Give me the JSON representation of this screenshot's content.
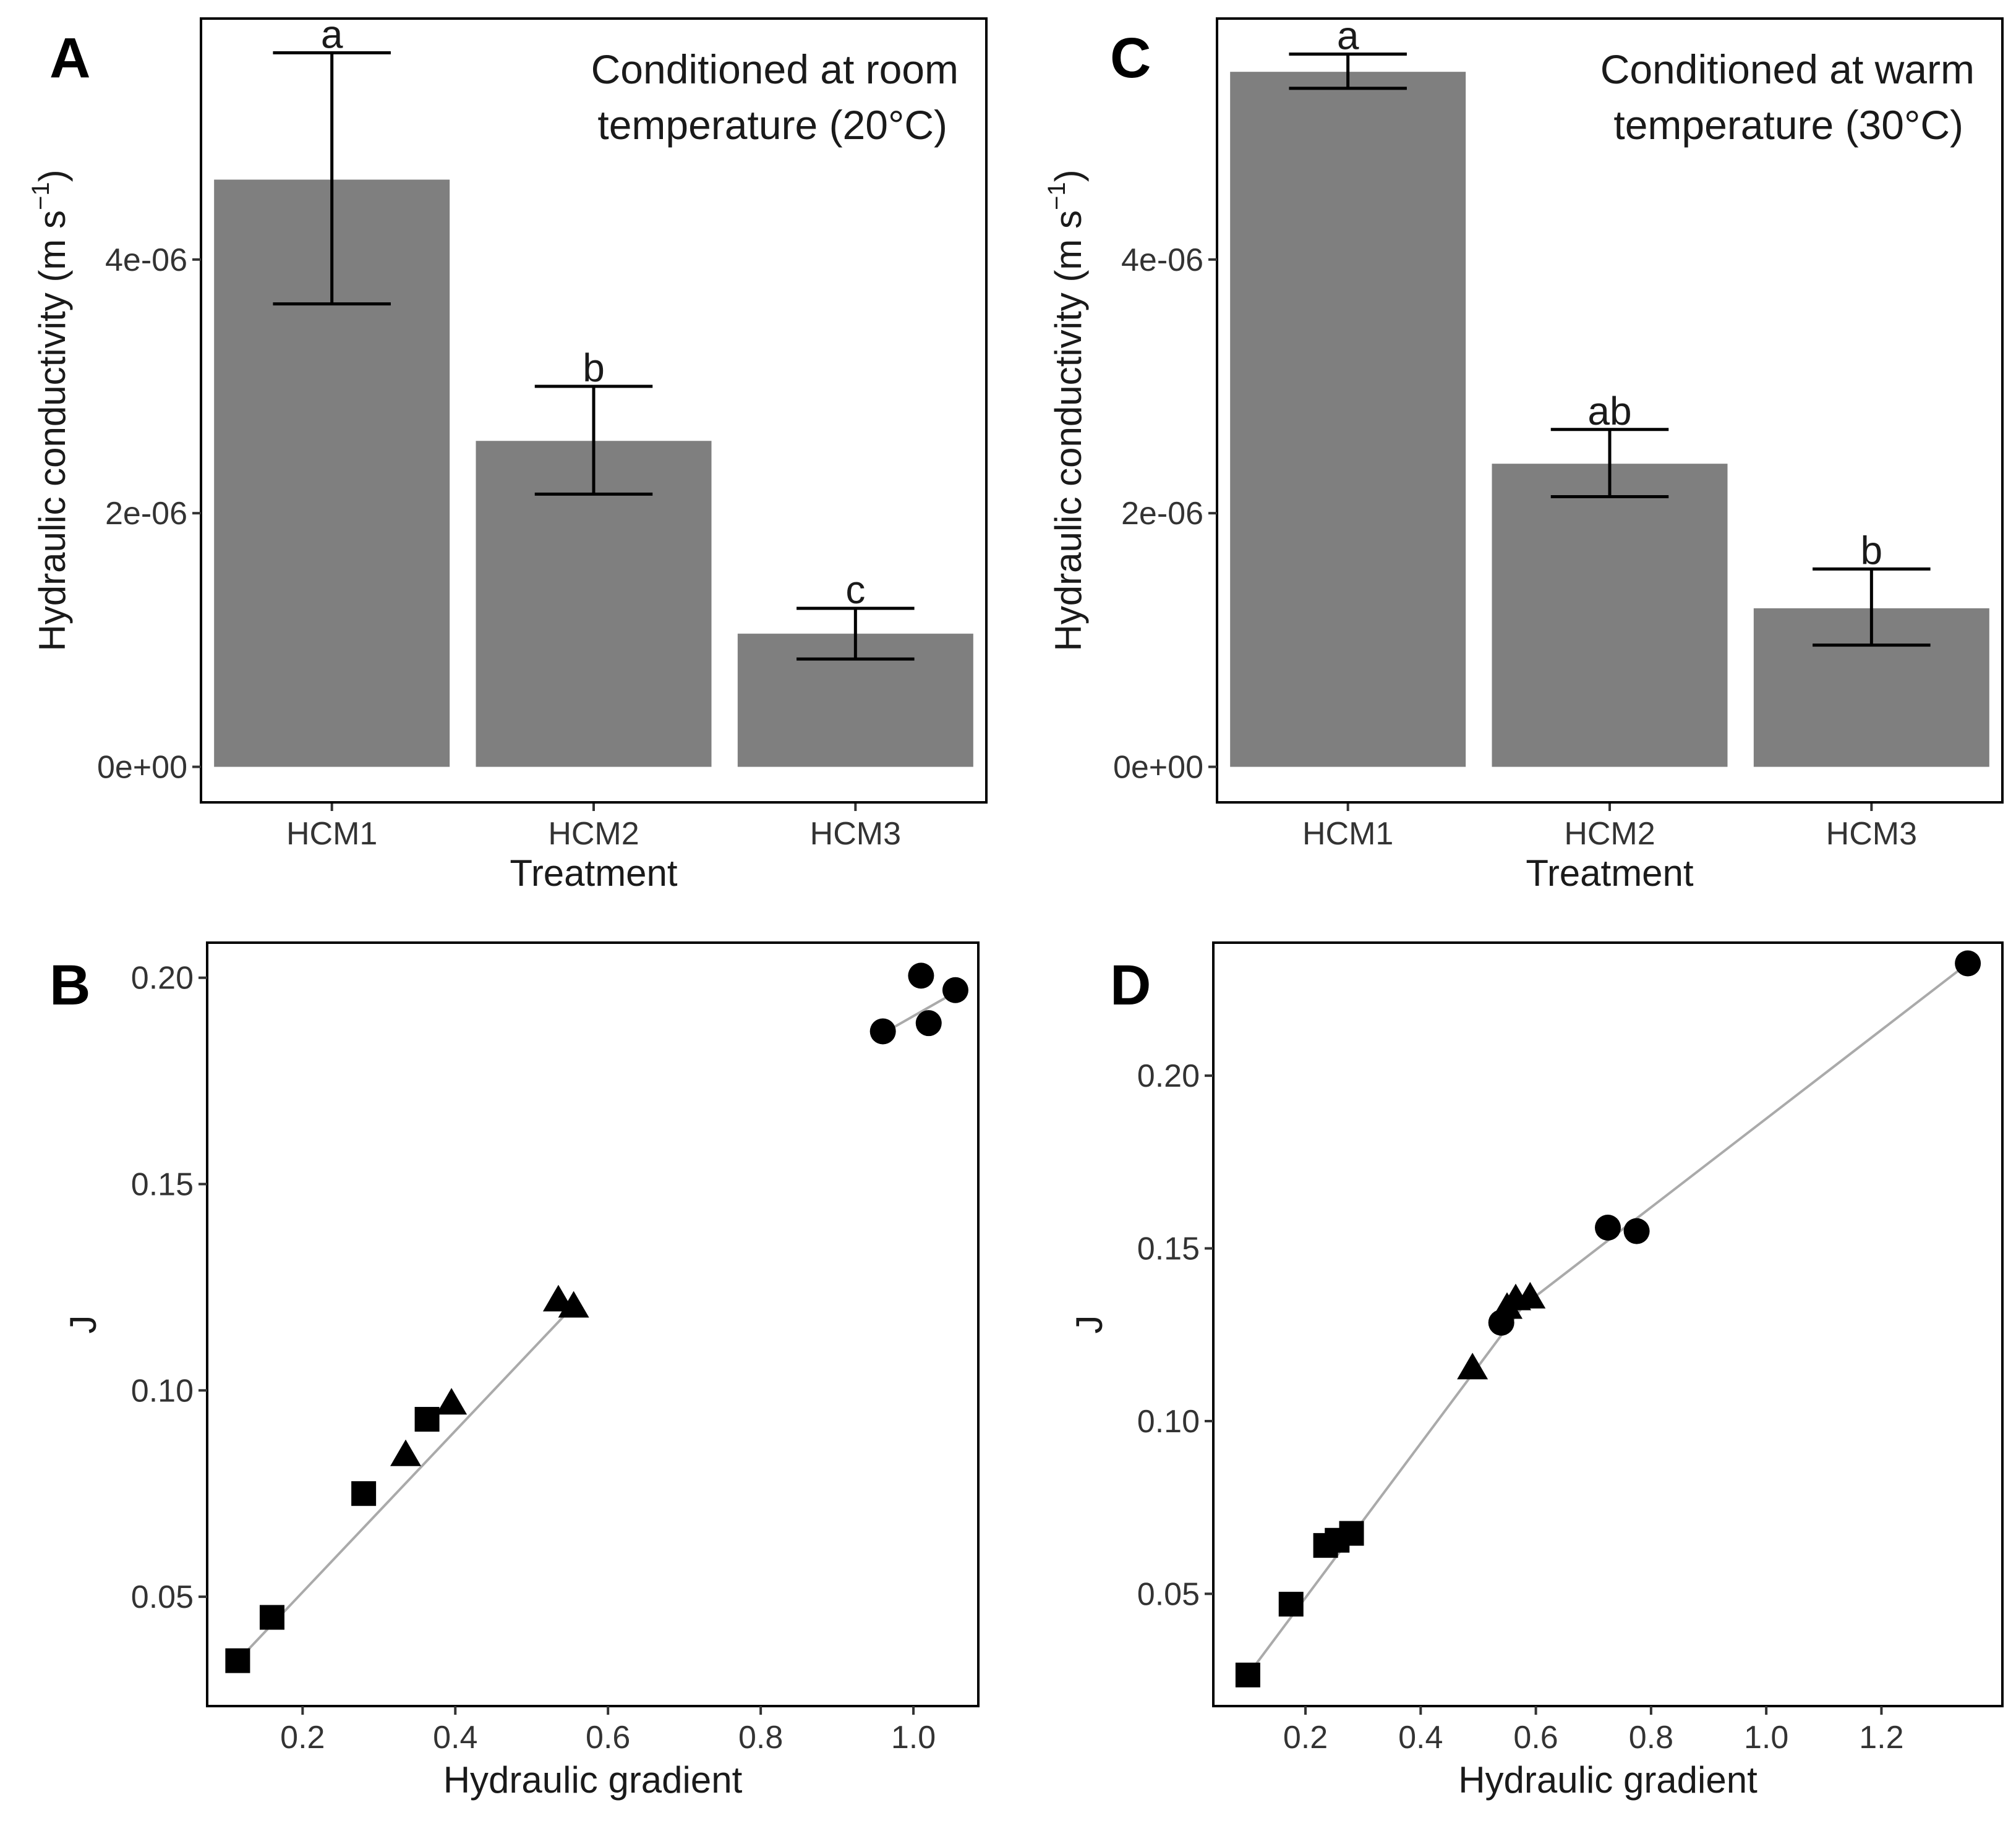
{
  "chart_data": [
    {
      "panel": "A",
      "type": "bar",
      "annotation": [
        "Conditioned at room",
        "temperature (20°C)"
      ],
      "xlabel": "Treatment",
      "ylabel": "Hydraulic conductivity (m s",
      "ylabel_sup": "−1",
      "ylabel_close": ")",
      "categories": [
        "HCM1",
        "HCM2",
        "HCM3"
      ],
      "values": [
        4.63e-06,
        2.57e-06,
        1.05e-06
      ],
      "error_low": [
        3.65e-06,
        2.15e-06,
        8.5e-07
      ],
      "error_high": [
        5.63e-06,
        3e-06,
        1.25e-06
      ],
      "letters": [
        "a",
        "b",
        "c"
      ],
      "ylim": [
        -2.8e-07,
        5.9e-06
      ],
      "yticks": [
        0,
        2e-06,
        4e-06
      ],
      "ytick_labels": [
        "0e+00",
        "2e-06",
        "4e-06"
      ],
      "bar_color": "#7f7f7f"
    },
    {
      "panel": "C",
      "type": "bar",
      "annotation": [
        "Conditioned at warm",
        "temperature (30°C)"
      ],
      "xlabel": "Treatment",
      "ylabel": "Hydraulic conductivity (m s",
      "ylabel_sup": "−1",
      "ylabel_close": ")",
      "categories": [
        "HCM1",
        "HCM2",
        "HCM3"
      ],
      "values": [
        5.48e-06,
        2.39e-06,
        1.25e-06
      ],
      "error_low": [
        5.35e-06,
        2.13e-06,
        9.6e-07
      ],
      "error_high": [
        5.62e-06,
        2.66e-06,
        1.56e-06
      ],
      "letters": [
        "a",
        "ab",
        "b"
      ],
      "ylim": [
        -2.8e-07,
        5.9e-06
      ],
      "yticks": [
        0,
        2e-06,
        4e-06
      ],
      "ytick_labels": [
        "0e+00",
        "2e-06",
        "4e-06"
      ],
      "bar_color": "#7f7f7f"
    },
    {
      "panel": "B",
      "type": "scatter",
      "xlabel": "Hydraulic gradient",
      "ylabel": "J",
      "xlim": [
        0.075,
        1.085
      ],
      "ylim": [
        0.0235,
        0.2085
      ],
      "xticks": [
        0.2,
        0.4,
        0.6,
        0.8,
        1.0
      ],
      "xtick_labels": [
        "0.2",
        "0.4",
        "0.6",
        "0.8",
        "1.0"
      ],
      "yticks": [
        0.05,
        0.1,
        0.15,
        0.2
      ],
      "ytick_labels": [
        "0.05",
        "0.10",
        "0.15",
        "0.20"
      ],
      "series": [
        {
          "marker": "square",
          "points": [
            [
              0.115,
              0.0345
            ],
            [
              0.16,
              0.045
            ],
            [
              0.28,
              0.075
            ],
            [
              0.363,
              0.093
            ]
          ]
        },
        {
          "marker": "triangle",
          "points": [
            [
              0.335,
              0.0845
            ],
            [
              0.395,
              0.097
            ],
            [
              0.535,
              0.122
            ],
            [
              0.555,
              0.1205
            ]
          ]
        },
        {
          "marker": "circle",
          "points": [
            [
              0.96,
              0.187
            ],
            [
              1.01,
              0.2005
            ],
            [
              1.02,
              0.189
            ],
            [
              1.055,
              0.197
            ]
          ]
        }
      ],
      "fit_lines": [
        [
          [
            0.115,
            0.0345
          ],
          [
            0.555,
            0.1205
          ]
        ],
        [
          [
            0.96,
            0.1865
          ],
          [
            1.055,
            0.1965
          ]
        ]
      ],
      "line_color": "#aaaaaa"
    },
    {
      "panel": "D",
      "type": "scatter",
      "xlabel": "Hydraulic gradient",
      "ylabel": "J",
      "xlim": [
        0.04,
        1.41
      ],
      "ylim": [
        0.0175,
        0.2385
      ],
      "xticks": [
        0.2,
        0.4,
        0.6,
        0.8,
        1.0,
        1.2
      ],
      "xtick_labels": [
        "0.2",
        "0.4",
        "0.6",
        "0.8",
        "1.0",
        "1.2"
      ],
      "yticks": [
        0.05,
        0.1,
        0.15,
        0.2
      ],
      "ytick_labels": [
        "0.05",
        "0.10",
        "0.15",
        "0.20"
      ],
      "series": [
        {
          "marker": "square",
          "points": [
            [
              0.1,
              0.0265
            ],
            [
              0.175,
              0.047
            ],
            [
              0.235,
              0.064
            ],
            [
              0.255,
              0.0655
            ],
            [
              0.28,
              0.0675
            ]
          ]
        },
        {
          "marker": "triangle",
          "points": [
            [
              0.49,
              0.1155
            ],
            [
              0.55,
              0.133
            ],
            [
              0.565,
              0.1355
            ],
            [
              0.59,
              0.136
            ]
          ]
        },
        {
          "marker": "circle",
          "points": [
            [
              0.54,
              0.1285
            ],
            [
              0.725,
              0.156
            ],
            [
              0.775,
              0.155
            ],
            [
              1.35,
              0.2325
            ]
          ]
        }
      ],
      "fit_lines": [
        [
          [
            0.1,
            0.0265
          ],
          [
            0.59,
            0.136
          ]
        ],
        [
          [
            0.54,
            0.1285
          ],
          [
            1.35,
            0.2325
          ]
        ]
      ],
      "line_color": "#aaaaaa"
    }
  ]
}
